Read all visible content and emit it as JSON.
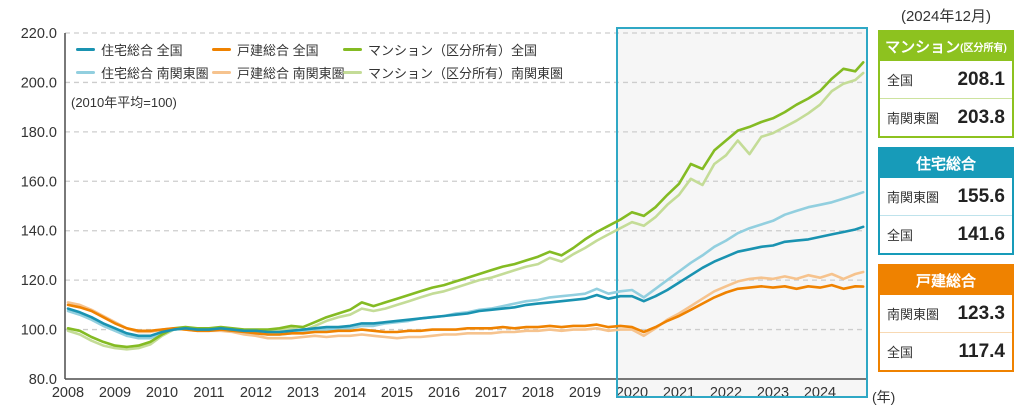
{
  "panel": {
    "date_label": "(2024年12月)",
    "tables": [
      {
        "title": "マンション",
        "title_suffix": "(区分所有)",
        "color": "#8dc21f",
        "separator": "#cde39e",
        "rows": [
          {
            "label": "全国",
            "value": "208.1"
          },
          {
            "label": "南関東圏",
            "value": "203.8"
          }
        ]
      },
      {
        "title": "住宅総合",
        "title_suffix": "",
        "color": "#179bb9",
        "separator": "#bfe3ec",
        "rows": [
          {
            "label": "南関東圏",
            "value": "155.6"
          },
          {
            "label": "全国",
            "value": "141.6"
          }
        ]
      },
      {
        "title": "戸建総合",
        "title_suffix": "",
        "color": "#ef8200",
        "separator": "#f8d9b3",
        "rows": [
          {
            "label": "南関東圏",
            "value": "123.3"
          },
          {
            "label": "全国",
            "value": "117.4"
          }
        ]
      }
    ]
  },
  "legend": {
    "order": [
      0,
      2,
      4,
      1,
      3,
      5
    ]
  },
  "chart_data": {
    "type": "line",
    "base_note": "(2010年平均=100)",
    "x_unit_label": "(年)",
    "xlim": [
      2008,
      2025
    ],
    "ylim": [
      80,
      220
    ],
    "yticks": [
      220,
      200,
      180,
      160,
      140,
      120,
      100,
      80
    ],
    "ytick_labels": [
      "220.0",
      "200.0",
      "180.0",
      "160.0",
      "140.0",
      "120.0",
      "100.0",
      "80.0"
    ],
    "xticks": [
      2008,
      2009,
      2010,
      2011,
      2012,
      2013,
      2014,
      2015,
      2016,
      2017,
      2018,
      2019,
      2020,
      2021,
      2022,
      2023,
      2024
    ],
    "xtick_labels": [
      "2008",
      "2009",
      "2010",
      "2011",
      "2012",
      "2013",
      "2014",
      "2015",
      "2016",
      "2017",
      "2018",
      "2019",
      "2020",
      "2021",
      "2022",
      "2023",
      "2024"
    ],
    "grid": "dashed horizontal",
    "legend_position": "top-left inside",
    "highlight_region": {
      "x_start": 2020,
      "x_end": 2025,
      "fill": "#f6f6f6",
      "border": "#2fa8c5"
    },
    "x": [
      2008.0,
      2008.25,
      2008.5,
      2008.75,
      2009.0,
      2009.25,
      2009.5,
      2009.75,
      2010.0,
      2010.25,
      2010.5,
      2010.75,
      2011.0,
      2011.25,
      2011.5,
      2011.75,
      2012.0,
      2012.25,
      2012.5,
      2012.75,
      2013.0,
      2013.25,
      2013.5,
      2013.75,
      2014.0,
      2014.25,
      2014.5,
      2014.75,
      2015.0,
      2015.25,
      2015.5,
      2015.75,
      2016.0,
      2016.25,
      2016.5,
      2016.75,
      2017.0,
      2017.25,
      2017.5,
      2017.75,
      2018.0,
      2018.25,
      2018.5,
      2018.75,
      2019.0,
      2019.25,
      2019.5,
      2019.75,
      2020.0,
      2020.25,
      2020.5,
      2020.75,
      2021.0,
      2021.25,
      2021.5,
      2021.75,
      2022.0,
      2022.25,
      2022.5,
      2022.75,
      2023.0,
      2023.25,
      2023.5,
      2023.75,
      2024.0,
      2024.25,
      2024.5,
      2024.75,
      2024.92
    ],
    "series": [
      {
        "id": "jutaku-sogo-zenkoku",
        "name": "住宅総合 全国",
        "color": "#1a93b1",
        "final_value": 141.6,
        "values": [
          108.5,
          107,
          105,
          102.5,
          100.5,
          98.5,
          97.5,
          97.5,
          99,
          100,
          100.5,
          100,
          100,
          100.5,
          100,
          99.5,
          99.5,
          99,
          99,
          99.5,
          100,
          100.5,
          101,
          101,
          101.5,
          102.5,
          102.5,
          103,
          103.5,
          104,
          104.5,
          105,
          105.5,
          106,
          106.5,
          107.5,
          108,
          108.5,
          109,
          110,
          110.5,
          111,
          111.5,
          112,
          112.5,
          114,
          112.5,
          113.5,
          113.5,
          111.5,
          113.5,
          116,
          119,
          122,
          125,
          127.5,
          129.5,
          131.5,
          132.5,
          133.5,
          134,
          135.5,
          136,
          136.5,
          137.5,
          138.5,
          139.5,
          140.5,
          141.6
        ]
      },
      {
        "id": "jutaku-sogo-minamikanto",
        "name": "住宅総合 南関東圏",
        "color": "#92cfdf",
        "final_value": 155.6,
        "values": [
          107.5,
          106,
          104,
          101.5,
          99.5,
          97.5,
          96.5,
          96.5,
          98.5,
          100,
          100.5,
          100,
          100,
          100,
          99.5,
          99,
          98.5,
          98,
          98,
          98.5,
          99,
          99.5,
          100,
          100,
          100.5,
          101.5,
          101.5,
          102.5,
          103,
          103.5,
          104.5,
          105,
          105.5,
          106.5,
          107,
          108,
          108.5,
          109.5,
          110.5,
          111.5,
          112,
          113,
          113.5,
          114,
          114.5,
          116.5,
          114.5,
          115.5,
          116,
          113,
          116.5,
          120,
          123.5,
          127,
          130,
          133.5,
          136,
          139,
          141,
          142.5,
          144,
          146.5,
          148,
          149.5,
          150.5,
          151.5,
          153,
          154.5,
          155.6
        ]
      },
      {
        "id": "kodate-sogo-zenkoku",
        "name": "戸建総合 全国",
        "color": "#ef8200",
        "final_value": 117.4,
        "values": [
          110,
          109,
          107.5,
          105,
          102.5,
          100.5,
          99.5,
          99.5,
          100,
          100.5,
          100,
          99.5,
          99.5,
          100,
          99.5,
          99,
          98.5,
          98,
          98,
          98.5,
          98.5,
          99,
          99,
          99.5,
          99.5,
          100,
          99.5,
          99,
          99,
          99.5,
          99.5,
          100,
          100,
          100,
          100.5,
          100.5,
          100.5,
          101,
          100.5,
          101,
          101,
          101.5,
          101,
          101.5,
          101.5,
          102,
          101,
          101.5,
          101,
          99,
          101,
          103.5,
          105.5,
          108,
          110.5,
          113,
          115,
          116.5,
          117,
          117.5,
          117,
          117.5,
          116.5,
          117.5,
          117,
          118,
          116.5,
          117.5,
          117.4
        ]
      },
      {
        "id": "kodate-sogo-minamikanto",
        "name": "戸建総合 南関東圏",
        "color": "#f6c38e",
        "final_value": 123.3,
        "values": [
          111,
          110,
          108,
          105.5,
          103,
          100.5,
          99,
          99,
          100,
          100.5,
          100,
          99.5,
          99.5,
          99.5,
          99,
          98,
          97.5,
          96.5,
          96.5,
          96.5,
          97,
          97.5,
          97,
          97.5,
          97.5,
          98,
          97.5,
          97,
          96.5,
          97,
          97,
          97.5,
          98,
          98,
          98.5,
          98.5,
          98.5,
          99,
          99,
          99.5,
          99.5,
          100,
          99.5,
          100,
          100,
          100.5,
          99.5,
          100,
          100,
          97.5,
          100.5,
          104,
          106.5,
          109.5,
          112.5,
          115.5,
          117.5,
          119.5,
          120.5,
          121,
          120.5,
          121.5,
          120.5,
          122,
          121,
          122.5,
          120.5,
          122.5,
          123.3
        ]
      },
      {
        "id": "mansion-zenkoku",
        "name": "マンション（区分所有）全国",
        "color": "#84bb23",
        "final_value": 208.1,
        "values": [
          100.5,
          99.5,
          97,
          95,
          93.5,
          93,
          93.5,
          95,
          98,
          100.5,
          101,
          100.5,
          100.5,
          101,
          100.5,
          100,
          100,
          100,
          100.5,
          101.5,
          101,
          103,
          105,
          106.5,
          108,
          111,
          109.5,
          111,
          112.5,
          114,
          115.5,
          117,
          118,
          119.5,
          121,
          122.5,
          124,
          125.5,
          126.5,
          128,
          129.5,
          131.5,
          130,
          133,
          136.5,
          139.5,
          142,
          144.5,
          147.5,
          146,
          149.5,
          154.5,
          159,
          167,
          165,
          172.5,
          176.5,
          180.5,
          182,
          184,
          185.5,
          188,
          191,
          193.5,
          196.5,
          201.5,
          205.5,
          204.5,
          208.1
        ]
      },
      {
        "id": "mansion-minamikanto",
        "name": "マンション（区分所有）南関東圏",
        "color": "#c4dc97",
        "final_value": 203.8,
        "values": [
          99.5,
          98,
          95.5,
          93.5,
          92.5,
          92,
          92.5,
          94,
          97.5,
          100,
          100.5,
          100,
          100,
          100.5,
          100,
          99.5,
          99,
          99,
          99.5,
          100.5,
          99.5,
          101.5,
          103.5,
          105,
          106,
          108.5,
          107.5,
          108.5,
          110,
          111.5,
          113,
          114.5,
          115.5,
          117,
          118.5,
          120,
          121,
          122.5,
          124,
          125.5,
          126.5,
          129,
          127.5,
          130.5,
          133,
          136,
          138.5,
          141,
          143.5,
          142,
          145.5,
          150.5,
          154.5,
          161,
          158.5,
          167,
          170.5,
          176.5,
          171,
          178,
          179.5,
          182,
          184.5,
          187.5,
          191,
          196.5,
          199.5,
          201,
          203.8
        ]
      }
    ]
  }
}
